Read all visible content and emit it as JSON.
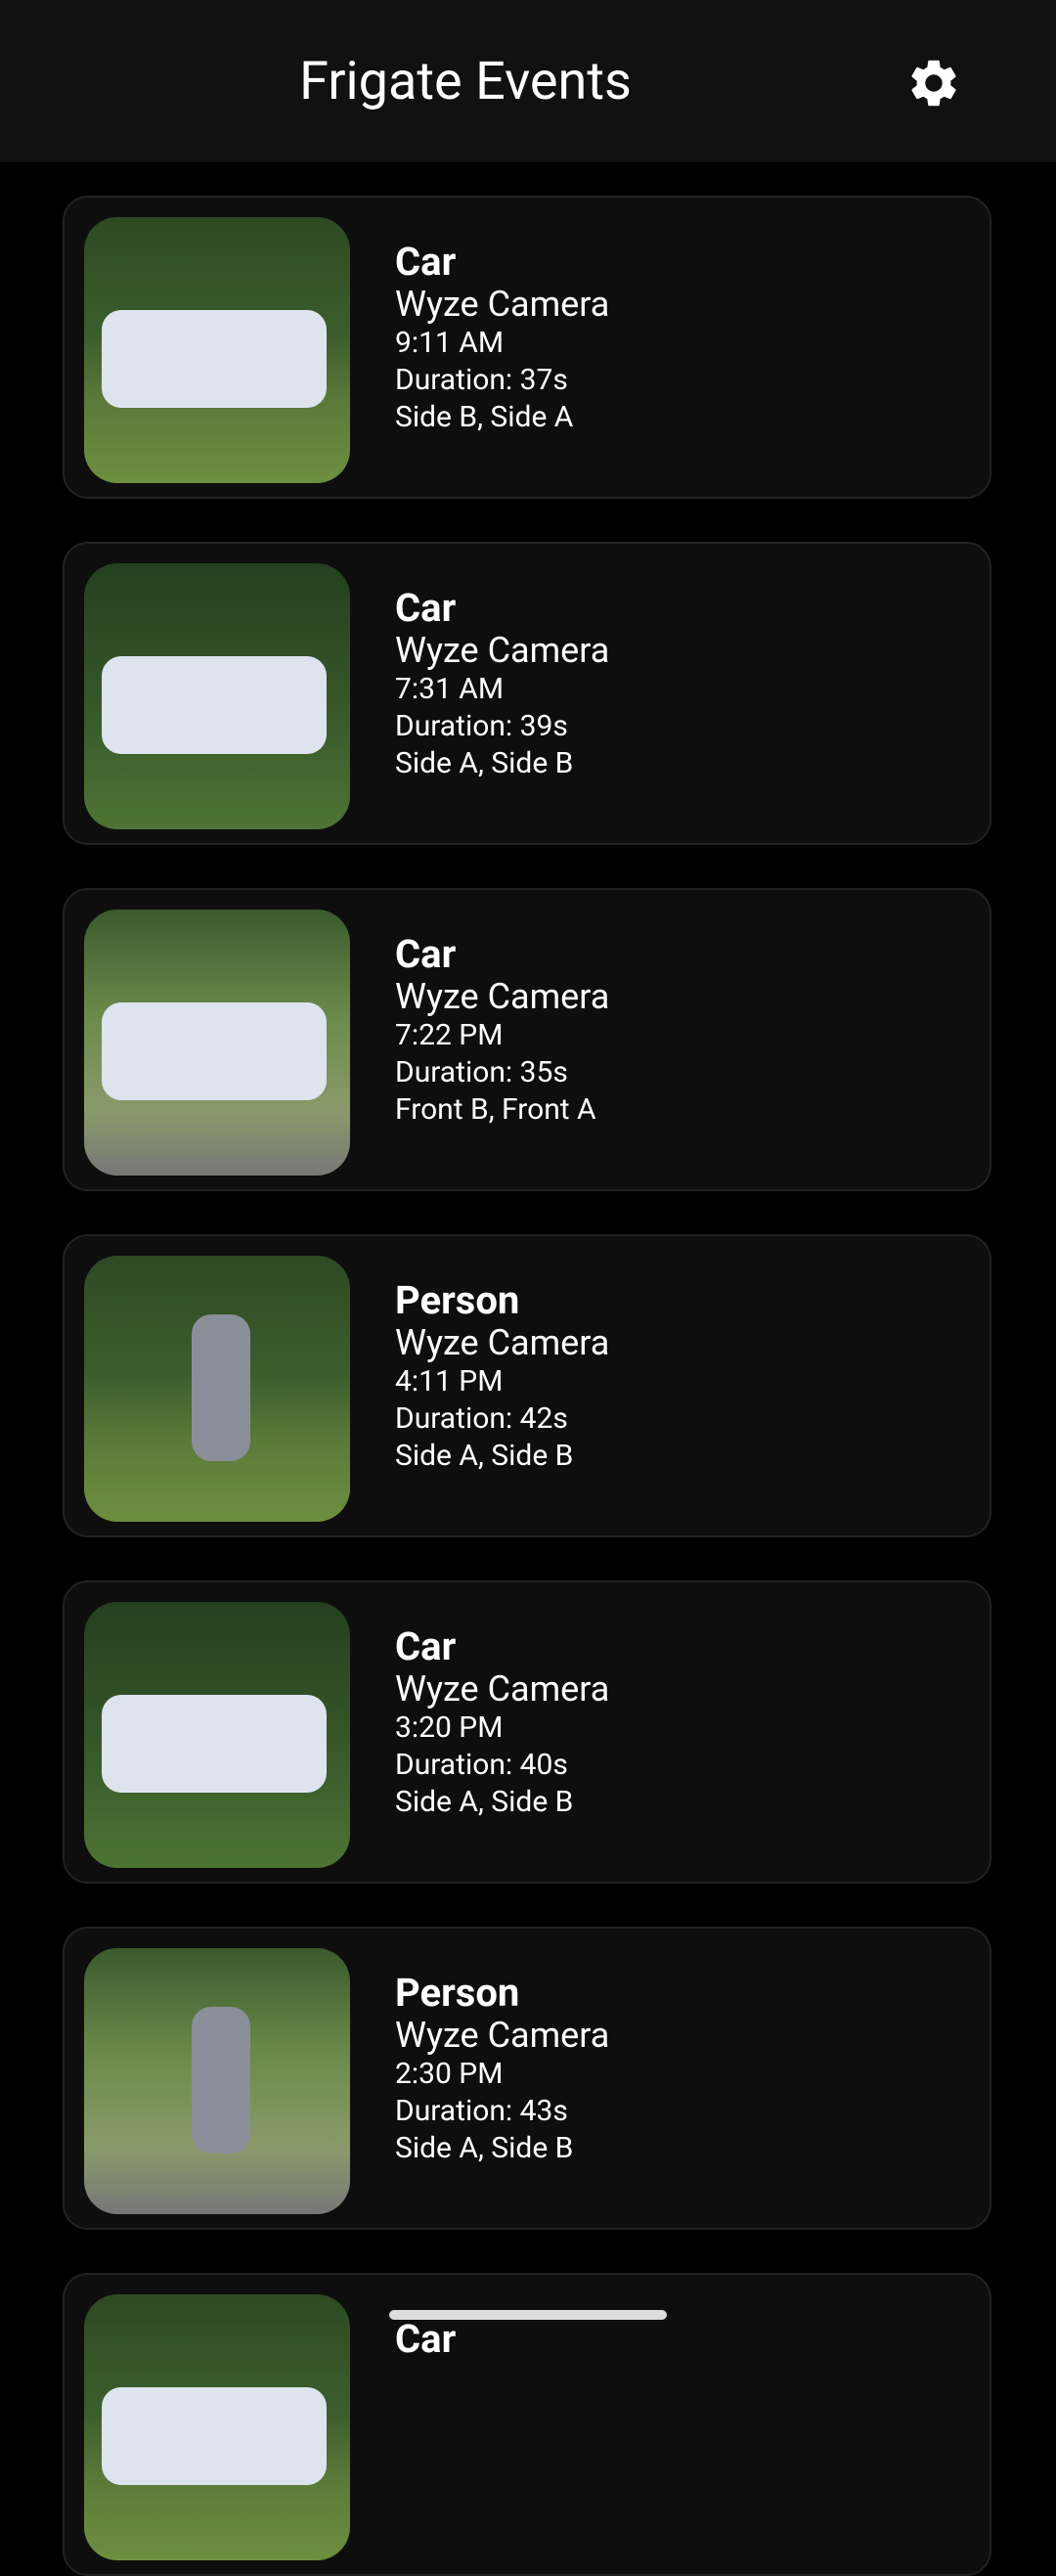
{
  "header": {
    "title": "Frigate Events"
  },
  "events": [
    {
      "label": "Car",
      "camera": "Wyze Camera",
      "time": "9:11 AM",
      "duration": "Duration: 37s",
      "zones": "Side B, Side A"
    },
    {
      "label": "Car",
      "camera": "Wyze Camera",
      "time": "7:31 AM",
      "duration": "Duration: 39s",
      "zones": "Side A, Side B"
    },
    {
      "label": "Car",
      "camera": "Wyze Camera",
      "time": "7:22 PM",
      "duration": "Duration: 35s",
      "zones": "Front B, Front A"
    },
    {
      "label": "Person",
      "camera": "Wyze Camera",
      "time": "4:11 PM",
      "duration": "Duration: 42s",
      "zones": "Side A, Side B"
    },
    {
      "label": "Car",
      "camera": "Wyze Camera",
      "time": "3:20 PM",
      "duration": "Duration: 40s",
      "zones": "Side A, Side B"
    },
    {
      "label": "Person",
      "camera": "Wyze Camera",
      "time": "2:30 PM",
      "duration": "Duration: 43s",
      "zones": "Side A, Side B"
    },
    {
      "label": "Car"
    }
  ]
}
